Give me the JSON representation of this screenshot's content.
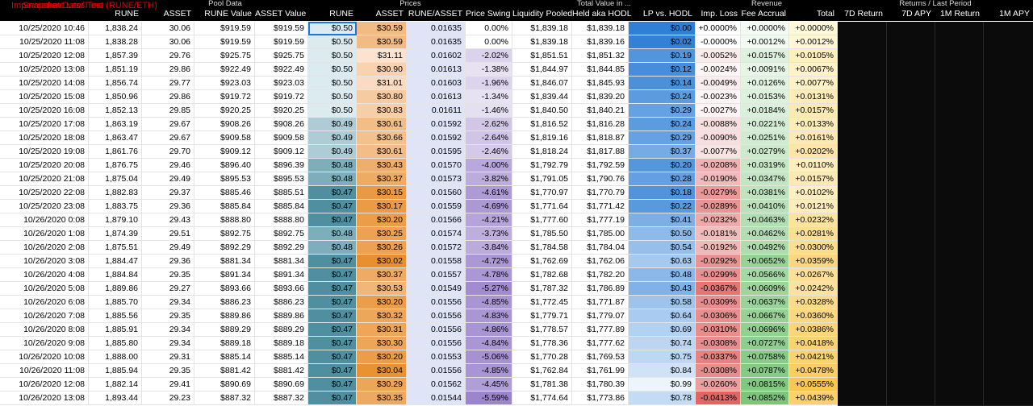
{
  "sheet": {
    "title": "Impermanent Loss Test (RUNE/ETH)",
    "overlay_header": "Snapshot Date/Time",
    "groups": [
      "Pool Data",
      "Prices",
      "Total Value in ...",
      "Revenue",
      "Returns / Last Period"
    ],
    "columns": [
      "",
      "RUNE",
      "ASSET",
      "RUNE Value",
      "ASSET Value",
      "RUNE",
      "ASSET",
      "RUNE/ASSET",
      "Price Swing",
      "Liquidity Pooled",
      "Held aka HODL",
      "LP vs. HODL",
      "Imp. Loss",
      "Fee Accrual",
      "Total",
      "7D Return",
      "7D APY",
      "1M Return",
      "1M APY"
    ],
    "rows": [
      [
        "10/25/2020 10:46",
        "1,838.24",
        "30.06",
        "$919.59",
        "$919.59",
        "$0.50",
        "$30.59",
        "0.01635",
        "0.00%",
        "$1,839.18",
        "$1,839.18",
        "$0.00",
        "+0.0000%",
        "+0.0000%",
        "+0.0000%"
      ],
      [
        "10/25/2020 11:08",
        "1,838.28",
        "30.06",
        "$919.59",
        "$919.59",
        "$0.50",
        "$30.59",
        "0.01635",
        "0.00%",
        "$1,839.18",
        "$1,839.16",
        "$0.02",
        "-0.0000%",
        "+0.0012%",
        "+0.0012%"
      ],
      [
        "10/25/2020 12:08",
        "1,857.39",
        "29.76",
        "$925.75",
        "$925.75",
        "$0.50",
        "$31.11",
        "0.01602",
        "-2.02%",
        "$1,851.51",
        "$1,851.32",
        "$0.19",
        "-0.0052%",
        "+0.0157%",
        "+0.0105%"
      ],
      [
        "10/25/2020 13:08",
        "1,851.19",
        "29.86",
        "$922.49",
        "$922.49",
        "$0.50",
        "$30.90",
        "0.01613",
        "-1.38%",
        "$1,844.97",
        "$1,844.85",
        "$0.12",
        "-0.0024%",
        "+0.0091%",
        "+0.0067%"
      ],
      [
        "10/25/2020 14:08",
        "1,856.74",
        "29.77",
        "$923.03",
        "$923.03",
        "$0.50",
        "$31.01",
        "0.01603",
        "-1.96%",
        "$1,846.07",
        "$1,845.93",
        "$0.14",
        "-0.0049%",
        "+0.0126%",
        "+0.0077%"
      ],
      [
        "10/25/2020 15:08",
        "1,850.96",
        "29.86",
        "$919.72",
        "$919.72",
        "$0.50",
        "$30.80",
        "0.01613",
        "-1.34%",
        "$1,839.44",
        "$1,839.20",
        "$0.24",
        "-0.0023%",
        "+0.0153%",
        "+0.0131%"
      ],
      [
        "10/25/2020 16:08",
        "1,852.13",
        "29.85",
        "$920.25",
        "$920.25",
        "$0.50",
        "$30.83",
        "0.01611",
        "-1.46%",
        "$1,840.50",
        "$1,840.21",
        "$0.29",
        "-0.0027%",
        "+0.0184%",
        "+0.0157%"
      ],
      [
        "10/25/2020 17:08",
        "1,863.19",
        "29.67",
        "$908.26",
        "$908.26",
        "$0.49",
        "$30.61",
        "0.01592",
        "-2.62%",
        "$1,816.52",
        "$1,816.28",
        "$0.24",
        "-0.0088%",
        "+0.0221%",
        "+0.0133%"
      ],
      [
        "10/25/2020 18:08",
        "1,863.47",
        "29.67",
        "$909.58",
        "$909.58",
        "$0.49",
        "$30.66",
        "0.01592",
        "-2.64%",
        "$1,819.16",
        "$1,818.87",
        "$0.29",
        "-0.0090%",
        "+0.0251%",
        "+0.0161%"
      ],
      [
        "10/25/2020 19:08",
        "1,861.76",
        "29.70",
        "$909.12",
        "$909.12",
        "$0.49",
        "$30.61",
        "0.01595",
        "-2.46%",
        "$1,818.24",
        "$1,817.88",
        "$0.37",
        "-0.0077%",
        "+0.0279%",
        "+0.0202%"
      ],
      [
        "10/25/2020 20:08",
        "1,876.75",
        "29.46",
        "$896.40",
        "$896.39",
        "$0.48",
        "$30.43",
        "0.01570",
        "-4.00%",
        "$1,792.79",
        "$1,792.59",
        "$0.20",
        "-0.0208%",
        "+0.0319%",
        "+0.0110%"
      ],
      [
        "10/25/2020 21:08",
        "1,875.04",
        "29.49",
        "$895.53",
        "$895.53",
        "$0.48",
        "$30.37",
        "0.01573",
        "-3.82%",
        "$1,791.05",
        "$1,790.76",
        "$0.28",
        "-0.0190%",
        "+0.0347%",
        "+0.0157%"
      ],
      [
        "10/25/2020 22:08",
        "1,882.83",
        "29.37",
        "$885.46",
        "$885.51",
        "$0.47",
        "$30.15",
        "0.01560",
        "-4.61%",
        "$1,770.97",
        "$1,770.79",
        "$0.18",
        "-0.0279%",
        "+0.0381%",
        "+0.0102%"
      ],
      [
        "10/25/2020 23:08",
        "1,883.75",
        "29.36",
        "$885.84",
        "$885.84",
        "$0.47",
        "$30.17",
        "0.01559",
        "-4.69%",
        "$1,771.64",
        "$1,771.42",
        "$0.22",
        "-0.0289%",
        "+0.0410%",
        "+0.0121%"
      ],
      [
        "10/26/2020 0:08",
        "1,879.10",
        "29.43",
        "$888.80",
        "$888.80",
        "$0.47",
        "$30.20",
        "0.01566",
        "-4.21%",
        "$1,777.60",
        "$1,777.19",
        "$0.41",
        "-0.0232%",
        "+0.0463%",
        "+0.0232%"
      ],
      [
        "10/26/2020 1:08",
        "1,874.39",
        "29.51",
        "$892.75",
        "$892.75",
        "$0.48",
        "$30.25",
        "0.01574",
        "-3.73%",
        "$1,785.50",
        "$1,785.00",
        "$0.50",
        "-0.0181%",
        "+0.0462%",
        "+0.0281%"
      ],
      [
        "10/26/2020 2:08",
        "1,875.51",
        "29.49",
        "$892.29",
        "$892.29",
        "$0.48",
        "$30.26",
        "0.01572",
        "-3.84%",
        "$1,784.58",
        "$1,784.04",
        "$0.54",
        "-0.0192%",
        "+0.0492%",
        "+0.0300%"
      ],
      [
        "10/26/2020 3:08",
        "1,884.47",
        "29.36",
        "$881.34",
        "$881.34",
        "$0.47",
        "$30.02",
        "0.01558",
        "-4.72%",
        "$1,762.69",
        "$1,762.06",
        "$0.63",
        "-0.0292%",
        "+0.0652%",
        "+0.0359%"
      ],
      [
        "10/26/2020 4:08",
        "1,884.84",
        "29.35",
        "$891.34",
        "$891.34",
        "$0.47",
        "$30.37",
        "0.01557",
        "-4.78%",
        "$1,782.68",
        "$1,782.20",
        "$0.48",
        "-0.0299%",
        "+0.0566%",
        "+0.0267%"
      ],
      [
        "10/26/2020 5:08",
        "1,889.86",
        "29.27",
        "$893.66",
        "$893.66",
        "$0.47",
        "$30.53",
        "0.01549",
        "-5.27%",
        "$1,787.32",
        "$1,786.89",
        "$0.43",
        "-0.0367%",
        "+0.0609%",
        "+0.0242%"
      ],
      [
        "10/26/2020 6:08",
        "1,885.70",
        "29.34",
        "$886.23",
        "$886.23",
        "$0.47",
        "$30.20",
        "0.01556",
        "-4.85%",
        "$1,772.45",
        "$1,771.87",
        "$0.58",
        "-0.0309%",
        "+0.0637%",
        "+0.0328%"
      ],
      [
        "10/26/2020 7:08",
        "1,885.56",
        "29.35",
        "$889.86",
        "$889.86",
        "$0.47",
        "$30.32",
        "0.01556",
        "-4.83%",
        "$1,779.71",
        "$1,779.07",
        "$0.64",
        "-0.0306%",
        "+0.0667%",
        "+0.0360%"
      ],
      [
        "10/26/2020 8:08",
        "1,885.91",
        "29.34",
        "$889.29",
        "$889.29",
        "$0.47",
        "$30.31",
        "0.01556",
        "-4.86%",
        "$1,778.57",
        "$1,777.89",
        "$0.69",
        "-0.0310%",
        "+0.0696%",
        "+0.0386%"
      ],
      [
        "10/26/2020 9:08",
        "1,885.80",
        "29.34",
        "$889.18",
        "$889.18",
        "$0.47",
        "$30.30",
        "0.01556",
        "-4.84%",
        "$1,778.36",
        "$1,777.62",
        "$0.74",
        "-0.0308%",
        "+0.0727%",
        "+0.0418%"
      ],
      [
        "10/26/2020 10:08",
        "1,888.00",
        "29.31",
        "$885.14",
        "$885.14",
        "$0.47",
        "$30.20",
        "0.01553",
        "-5.06%",
        "$1,770.28",
        "$1,769.53",
        "$0.75",
        "-0.0337%",
        "+0.0758%",
        "+0.0421%"
      ],
      [
        "10/26/2020 11:08",
        "1,885.94",
        "29.35",
        "$881.42",
        "$881.42",
        "$0.47",
        "$30.04",
        "0.01556",
        "-4.85%",
        "$1,762.84",
        "$1,761.99",
        "$0.84",
        "-0.0308%",
        "+0.0787%",
        "+0.0478%"
      ],
      [
        "10/26/2020 12:08",
        "1,882.14",
        "29.41",
        "$890.69",
        "$890.69",
        "$0.47",
        "$30.29",
        "0.01562",
        "-4.45%",
        "$1,781.38",
        "$1,780.39",
        "$0.99",
        "-0.0260%",
        "+0.0815%",
        "+0.0555%"
      ],
      [
        "10/26/2020 13:08",
        "1,893.44",
        "29.23",
        "$887.32",
        "$887.32",
        "$0.47",
        "$30.35",
        "0.01544",
        "-5.59%",
        "$1,774.64",
        "$1,773.86",
        "$0.78",
        "-0.0413%",
        "+0.0852%",
        "+0.0439%"
      ]
    ],
    "colors": {
      "header_bg": "#000000",
      "title_red": "#e00000",
      "selection": "#1a73e8",
      "rune_high": "#dcebf0",
      "rune_low": "#4f8fa0",
      "asset_low": "#fbe3d0",
      "asset_high": "#e8902f",
      "ratio": "#dfe4f7",
      "swing_zero": "#ffffff",
      "swing_low": "#9c85cc",
      "lp_low": "#2f7fd6",
      "lp_high": "#ecf4fc",
      "imp_zero": "#ffffff",
      "imp_low": "#e06666",
      "fee_low": "#f4fbf4",
      "fee_high": "#7cc67c",
      "total_low": "#fff8d9",
      "total_high": "#f9c74f"
    }
  }
}
